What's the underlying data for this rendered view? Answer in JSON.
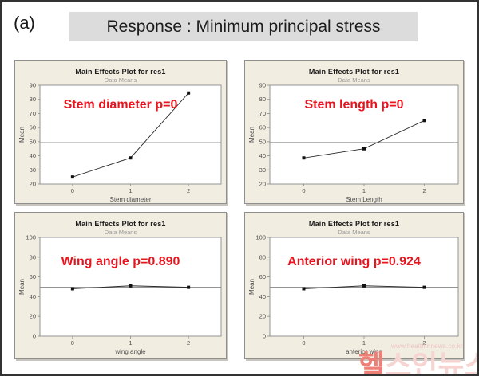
{
  "header": {
    "figure_label": "(a)",
    "title": "Response : Minimum principal stress"
  },
  "watermark": {
    "url_text": "www.healthinnews.co.kr",
    "logo_first": "헬",
    "logo_rest": "스인뉴스"
  },
  "colors": {
    "frame_border": "#333333",
    "header_box_bg": "#dcdcdc",
    "header_text": "#1c1c1c",
    "panel_bg": "#f1ede1",
    "panel_border": "#8f8f8f",
    "plot_bg": "#ffffff",
    "plot_border": "#8a8a8a",
    "ref_line": "#707070",
    "data_line": "#2a2a2a",
    "marker": "#111111",
    "tick_text": "#4d4d4d",
    "chart_title": "#1c1c1c",
    "subtitle_text": "#9a9a9a",
    "annotation_red": "#e8141e",
    "wm_url": "#f0c3c0",
    "wm_first": "#ee7f76",
    "wm_rest": "#f6d4d1"
  },
  "chart_data": [
    {
      "type": "line",
      "title": "Main Effects Plot for res1",
      "subtitle": "Data Means",
      "xlabel": "Stem diameter",
      "ylabel": "Mean",
      "categories": [
        0,
        1,
        2
      ],
      "values": [
        25,
        38.5,
        84.5
      ],
      "ylim": [
        20,
        90
      ],
      "yticks": [
        20,
        30,
        40,
        50,
        60,
        70,
        80,
        90
      ],
      "reference_line": 49.3,
      "grid": false,
      "legend": false,
      "annotation": "Stem diameter p=0"
    },
    {
      "type": "line",
      "title": "Main Effects Plot for res1",
      "subtitle": "Data Means",
      "xlabel": "Stem Length",
      "ylabel": "Mean",
      "categories": [
        0,
        1,
        2
      ],
      "values": [
        38.5,
        45,
        65
      ],
      "ylim": [
        20,
        90
      ],
      "yticks": [
        20,
        30,
        40,
        50,
        60,
        70,
        80,
        90
      ],
      "reference_line": 49.4,
      "grid": false,
      "legend": false,
      "annotation": "Stem length p=0"
    },
    {
      "type": "line",
      "title": "Main Effects Plot for res1",
      "subtitle": "Data Means",
      "xlabel": "wing angle",
      "ylabel": "Mean",
      "categories": [
        0,
        1,
        2
      ],
      "values": [
        48,
        51,
        49.5
      ],
      "ylim": [
        0,
        100
      ],
      "yticks": [
        0,
        20,
        40,
        60,
        80,
        100
      ],
      "reference_line": 49.4,
      "grid": false,
      "legend": false,
      "annotation": "Wing angle p=0.890"
    },
    {
      "type": "line",
      "title": "Main Effects Plot for res1",
      "subtitle": "Data Means",
      "xlabel": "anterior wing",
      "ylabel": "Mean",
      "categories": [
        0,
        1,
        2
      ],
      "values": [
        48,
        51,
        49.5
      ],
      "ylim": [
        0,
        100
      ],
      "yticks": [
        0,
        20,
        40,
        60,
        80,
        100
      ],
      "reference_line": 49.4,
      "grid": false,
      "legend": false,
      "annotation": "Anterior wing p=0.924"
    }
  ]
}
